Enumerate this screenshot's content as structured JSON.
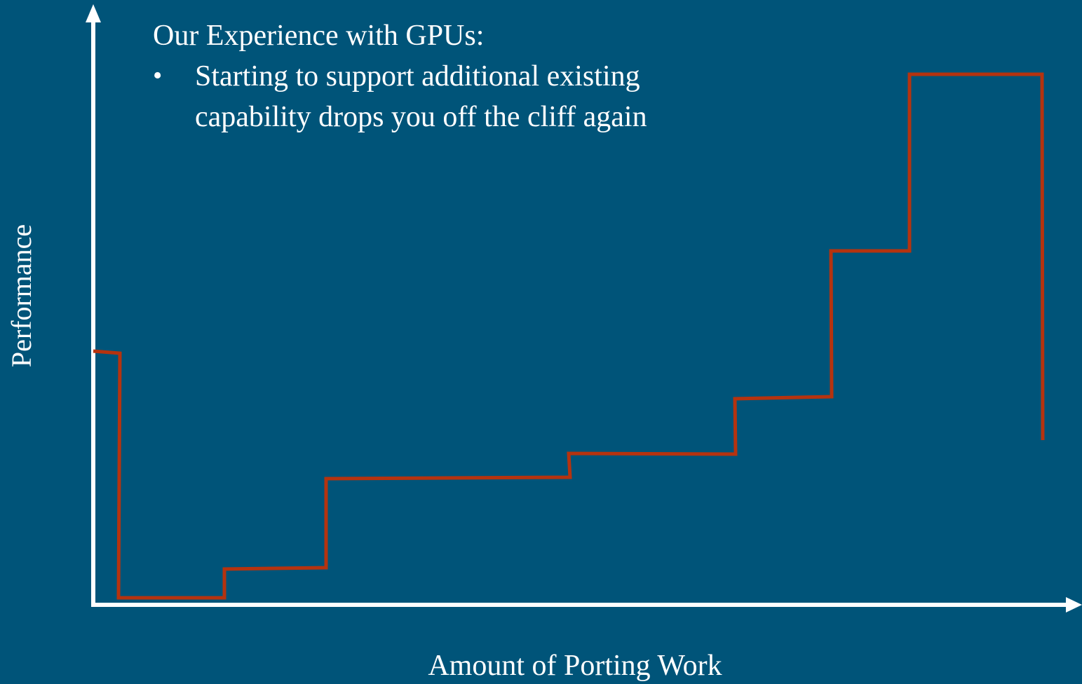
{
  "title": "Our Experience with GPUs:",
  "bullet": {
    "lines": [
      "Starting to support additional existing",
      "capability drops you off the cliff again"
    ]
  },
  "x_label": "Amount of Porting Work",
  "y_label": "Performance"
}
